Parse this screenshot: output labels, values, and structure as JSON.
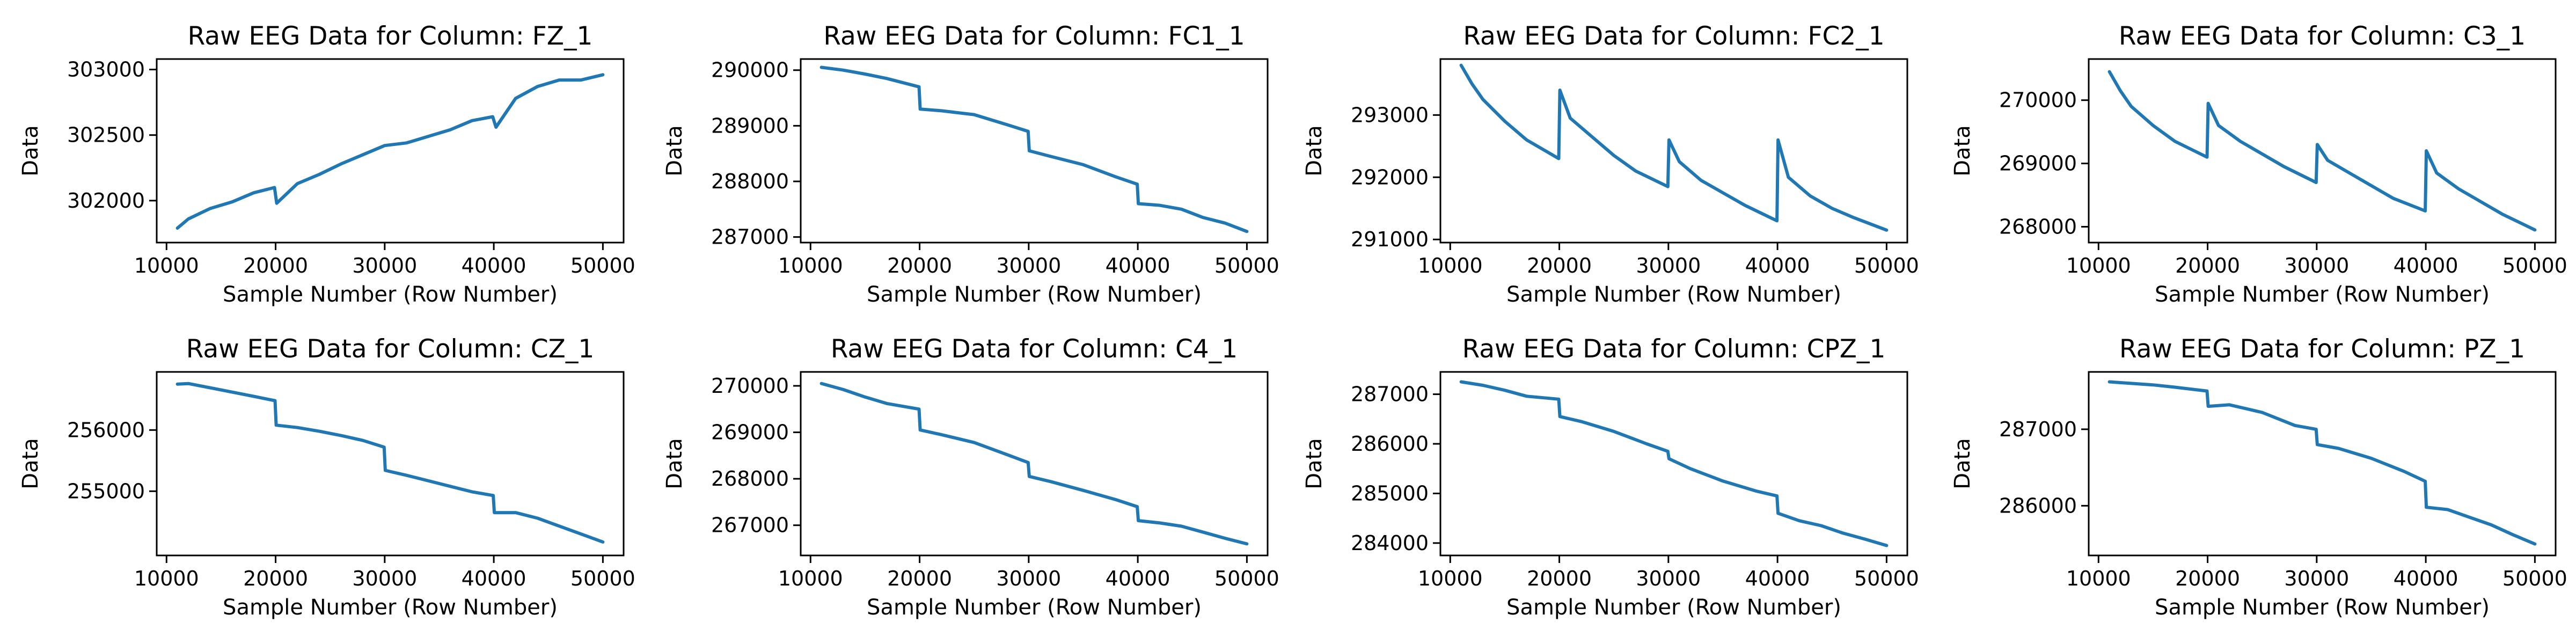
{
  "figure": {
    "line_color": "#1f77b4"
  },
  "chart_data": [
    {
      "type": "line",
      "title": "Raw EEG Data for Column: FZ_1",
      "xlabel": "Sample Number (Row Number)",
      "ylabel": "Data",
      "xlim": [
        9100,
        51900
      ],
      "ylim": [
        301680,
        303080
      ],
      "xticks": [
        10000,
        20000,
        30000,
        40000,
        50000
      ],
      "xtick_labels": [
        "10000",
        "20000",
        "30000",
        "40000",
        "50000"
      ],
      "yticks": [
        302000,
        302500,
        303000
      ],
      "ytick_labels": [
        "302000",
        "302500",
        "303000"
      ],
      "grid": false,
      "x": [
        11000,
        12000,
        14000,
        16000,
        18000,
        19900,
        20100,
        22000,
        24000,
        26000,
        28000,
        30000,
        32000,
        34000,
        36000,
        38000,
        39900,
        40200,
        42000,
        44000,
        46000,
        48000,
        50000
      ],
      "y": [
        301790,
        301860,
        301940,
        301990,
        302060,
        302100,
        301980,
        302130,
        302200,
        302280,
        302350,
        302420,
        302440,
        302490,
        302540,
        302610,
        302640,
        302560,
        302780,
        302870,
        302920,
        302920,
        302960
      ]
    },
    {
      "type": "line",
      "title": "Raw EEG Data for Column: FC1_1",
      "xlabel": "Sample Number (Row Number)",
      "ylabel": "Data",
      "xlim": [
        9100,
        51900
      ],
      "ylim": [
        286900,
        290200
      ],
      "xticks": [
        10000,
        20000,
        30000,
        40000,
        50000
      ],
      "xtick_labels": [
        "10000",
        "20000",
        "30000",
        "40000",
        "50000"
      ],
      "yticks": [
        287000,
        288000,
        289000,
        290000
      ],
      "ytick_labels": [
        "287000",
        "288000",
        "289000",
        "290000"
      ],
      "grid": false,
      "x": [
        11000,
        13000,
        15000,
        17000,
        19950,
        20050,
        22000,
        25000,
        28000,
        29950,
        30050,
        32000,
        35000,
        38000,
        39950,
        40050,
        42000,
        44000,
        46000,
        48000,
        50000
      ],
      "y": [
        290050,
        290000,
        289930,
        289850,
        289700,
        289300,
        289270,
        289200,
        289020,
        288900,
        288550,
        288450,
        288300,
        288080,
        287950,
        287600,
        287570,
        287500,
        287350,
        287250,
        287100
      ]
    },
    {
      "type": "line",
      "title": "Raw EEG Data for Column: FC2_1",
      "xlabel": "Sample Number (Row Number)",
      "ylabel": "Data",
      "xlim": [
        9100,
        51900
      ],
      "ylim": [
        290950,
        293900
      ],
      "xticks": [
        10000,
        20000,
        30000,
        40000,
        50000
      ],
      "xtick_labels": [
        "10000",
        "20000",
        "30000",
        "40000",
        "50000"
      ],
      "yticks": [
        291000,
        292000,
        293000
      ],
      "ytick_labels": [
        "291000",
        "292000",
        "293000"
      ],
      "grid": false,
      "x": [
        11000,
        12000,
        13000,
        15000,
        17000,
        19950,
        20050,
        21000,
        23000,
        25000,
        27000,
        29950,
        30050,
        31000,
        33000,
        35000,
        37000,
        39950,
        40050,
        41000,
        43000,
        45000,
        47000,
        50000
      ],
      "y": [
        293800,
        293500,
        293250,
        292900,
        292600,
        292300,
        293400,
        292950,
        292650,
        292350,
        292100,
        291850,
        292600,
        292250,
        291950,
        291750,
        291550,
        291300,
        292600,
        292000,
        291700,
        291500,
        291350,
        291150
      ]
    },
    {
      "type": "line",
      "title": "Raw EEG Data for Column: C3_1",
      "xlabel": "Sample Number (Row Number)",
      "ylabel": "Data",
      "xlim": [
        9100,
        51900
      ],
      "ylim": [
        267750,
        270650
      ],
      "xticks": [
        10000,
        20000,
        30000,
        40000,
        50000
      ],
      "xtick_labels": [
        "10000",
        "20000",
        "30000",
        "40000",
        "50000"
      ],
      "yticks": [
        268000,
        269000,
        270000
      ],
      "ytick_labels": [
        "268000",
        "269000",
        "270000"
      ],
      "grid": false,
      "x": [
        11000,
        12000,
        13000,
        15000,
        17000,
        19950,
        20050,
        21000,
        23000,
        25000,
        27000,
        29950,
        30050,
        31000,
        33000,
        35000,
        37000,
        39950,
        40050,
        41000,
        43000,
        45000,
        47000,
        50000
      ],
      "y": [
        270450,
        270150,
        269900,
        269600,
        269350,
        269100,
        269950,
        269600,
        269350,
        269150,
        268950,
        268700,
        269300,
        269050,
        268850,
        268650,
        268450,
        268250,
        269200,
        268850,
        268600,
        268400,
        268200,
        267950
      ]
    },
    {
      "type": "line",
      "title": "Raw EEG Data for Column: CZ_1",
      "xlabel": "Sample Number (Row Number)",
      "ylabel": "Data",
      "xlim": [
        9100,
        51900
      ],
      "ylim": [
        253950,
        256950
      ],
      "xticks": [
        10000,
        20000,
        30000,
        40000,
        50000
      ],
      "xtick_labels": [
        "10000",
        "20000",
        "30000",
        "40000",
        "50000"
      ],
      "yticks": [
        255000,
        256000
      ],
      "ytick_labels": [
        "255000",
        "256000"
      ],
      "grid": false,
      "x": [
        11000,
        12000,
        14000,
        16000,
        18000,
        19950,
        20050,
        22000,
        24000,
        26000,
        28000,
        29950,
        30050,
        32000,
        34000,
        36000,
        38000,
        39950,
        40050,
        42000,
        44000,
        46000,
        48000,
        50000
      ],
      "y": [
        256750,
        256760,
        256690,
        256620,
        256550,
        256480,
        256080,
        256040,
        255980,
        255910,
        255830,
        255720,
        255340,
        255260,
        255170,
        255080,
        254990,
        254930,
        254650,
        254650,
        254560,
        254430,
        254300,
        254170
      ]
    },
    {
      "type": "line",
      "title": "Raw EEG Data for Column: C4_1",
      "xlabel": "Sample Number (Row Number)",
      "ylabel": "Data",
      "xlim": [
        9100,
        51900
      ],
      "ylim": [
        266350,
        270300
      ],
      "xticks": [
        10000,
        20000,
        30000,
        40000,
        50000
      ],
      "xtick_labels": [
        "10000",
        "20000",
        "30000",
        "40000",
        "50000"
      ],
      "yticks": [
        267000,
        268000,
        269000,
        270000
      ],
      "ytick_labels": [
        "267000",
        "268000",
        "269000",
        "270000"
      ],
      "grid": false,
      "x": [
        11000,
        13000,
        15000,
        17000,
        19950,
        20050,
        22000,
        25000,
        28000,
        29950,
        30050,
        32000,
        35000,
        38000,
        39950,
        40050,
        42000,
        44000,
        46000,
        48000,
        50000
      ],
      "y": [
        270050,
        269920,
        269760,
        269620,
        269500,
        269050,
        268950,
        268780,
        268520,
        268350,
        268050,
        267940,
        267750,
        267550,
        267400,
        267100,
        267050,
        266980,
        266850,
        266720,
        266600
      ]
    },
    {
      "type": "line",
      "title": "Raw EEG Data for Column: CPZ_1",
      "xlabel": "Sample Number (Row Number)",
      "ylabel": "Data",
      "xlim": [
        9100,
        51900
      ],
      "ylim": [
        283750,
        287450
      ],
      "xticks": [
        10000,
        20000,
        30000,
        40000,
        50000
      ],
      "xtick_labels": [
        "10000",
        "20000",
        "30000",
        "40000",
        "50000"
      ],
      "yticks": [
        284000,
        285000,
        286000,
        287000
      ],
      "ytick_labels": [
        "284000",
        "285000",
        "286000",
        "287000"
      ],
      "grid": false,
      "x": [
        11000,
        13000,
        15000,
        17000,
        19950,
        20050,
        22000,
        25000,
        28000,
        29950,
        30050,
        32000,
        35000,
        38000,
        39950,
        40050,
        42000,
        44000,
        46000,
        48000,
        50000
      ],
      "y": [
        287250,
        287180,
        287080,
        286960,
        286900,
        286550,
        286450,
        286250,
        286000,
        285850,
        285700,
        285500,
        285250,
        285050,
        284950,
        284600,
        284450,
        284350,
        284200,
        284080,
        283950
      ]
    },
    {
      "type": "line",
      "title": "Raw EEG Data for Column: PZ_1",
      "xlabel": "Sample Number (Row Number)",
      "ylabel": "Data",
      "xlim": [
        9100,
        51900
      ],
      "ylim": [
        285350,
        287750
      ],
      "xticks": [
        10000,
        20000,
        30000,
        40000,
        50000
      ],
      "xtick_labels": [
        "10000",
        "20000",
        "30000",
        "40000",
        "50000"
      ],
      "yticks": [
        286000,
        287000
      ],
      "ytick_labels": [
        "286000",
        "287000"
      ],
      "grid": false,
      "x": [
        11000,
        13000,
        15000,
        17000,
        19950,
        20050,
        22000,
        25000,
        28000,
        29950,
        30050,
        32000,
        35000,
        38000,
        39950,
        40050,
        42000,
        44000,
        46000,
        48000,
        50000
      ],
      "y": [
        287620,
        287600,
        287580,
        287550,
        287500,
        287300,
        287320,
        287220,
        287050,
        287000,
        286800,
        286750,
        286620,
        286450,
        286320,
        285980,
        285950,
        285850,
        285750,
        285620,
        285500
      ]
    }
  ]
}
